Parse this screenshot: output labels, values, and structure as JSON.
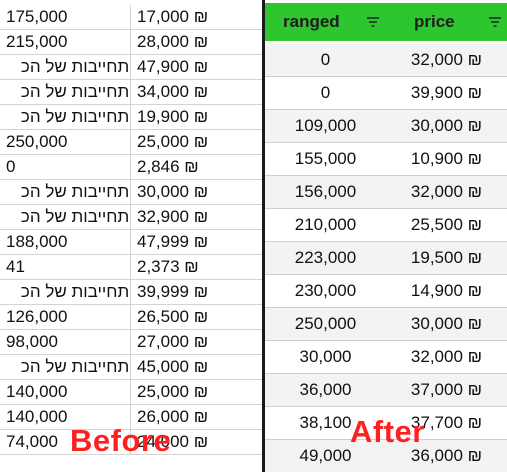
{
  "before": {
    "rows": [
      {
        "ranged": "175,000",
        "price": "17,000 ₪"
      },
      {
        "ranged": "215,000",
        "price": "28,000 ₪"
      },
      {
        "ranged": "התחייבות של הכ",
        "price": "47,900 ₪"
      },
      {
        "ranged": "התחייבות של הכ",
        "price": "34,000 ₪"
      },
      {
        "ranged": "התחייבות של הכ",
        "price": "19,900 ₪"
      },
      {
        "ranged": "250,000",
        "price": "25,000 ₪"
      },
      {
        "ranged": "0",
        "price": "2,846 ₪"
      },
      {
        "ranged": "התחייבות של הכ",
        "price": "30,000 ₪"
      },
      {
        "ranged": "התחייבות של הכ",
        "price": "32,900 ₪"
      },
      {
        "ranged": "188,000",
        "price": "47,999 ₪"
      },
      {
        "ranged": "41",
        "price": "2,373 ₪"
      },
      {
        "ranged": "התחייבות של הכ",
        "price": "39,999 ₪"
      },
      {
        "ranged": "126,000",
        "price": "26,500 ₪"
      },
      {
        "ranged": "98,000",
        "price": "27,000 ₪"
      },
      {
        "ranged": "התחייבות של הכ",
        "price": "45,000 ₪"
      },
      {
        "ranged": "140,000",
        "price": "25,000 ₪"
      },
      {
        "ranged": "140,000",
        "price": "26,000 ₪"
      },
      {
        "ranged": "74,000",
        "price": "24,000 ₪"
      }
    ],
    "label": "Before"
  },
  "after": {
    "header": {
      "ranged": "ranged",
      "price": "price"
    },
    "rows": [
      {
        "ranged": "0",
        "price": "32,000 ₪"
      },
      {
        "ranged": "0",
        "price": "39,900 ₪"
      },
      {
        "ranged": "109,000",
        "price": "30,000 ₪"
      },
      {
        "ranged": "155,000",
        "price": "10,900 ₪"
      },
      {
        "ranged": "156,000",
        "price": "32,000 ₪"
      },
      {
        "ranged": "210,000",
        "price": "25,500 ₪"
      },
      {
        "ranged": "223,000",
        "price": "19,500 ₪"
      },
      {
        "ranged": "230,000",
        "price": "14,900 ₪"
      },
      {
        "ranged": "250,000",
        "price": "30,000 ₪"
      },
      {
        "ranged": "30,000",
        "price": "32,000 ₪"
      },
      {
        "ranged": "36,000",
        "price": "37,000 ₪"
      },
      {
        "ranged": "38,100",
        "price": "37,700 ₪"
      },
      {
        "ranged": "49,000",
        "price": "36,000 ₪"
      }
    ],
    "label": "After"
  },
  "colors": {
    "header_bg": "#2ec62e",
    "label": "#ff1f1f",
    "divider": "#1b1b1b"
  },
  "icons": {
    "filter": "filter-icon"
  }
}
